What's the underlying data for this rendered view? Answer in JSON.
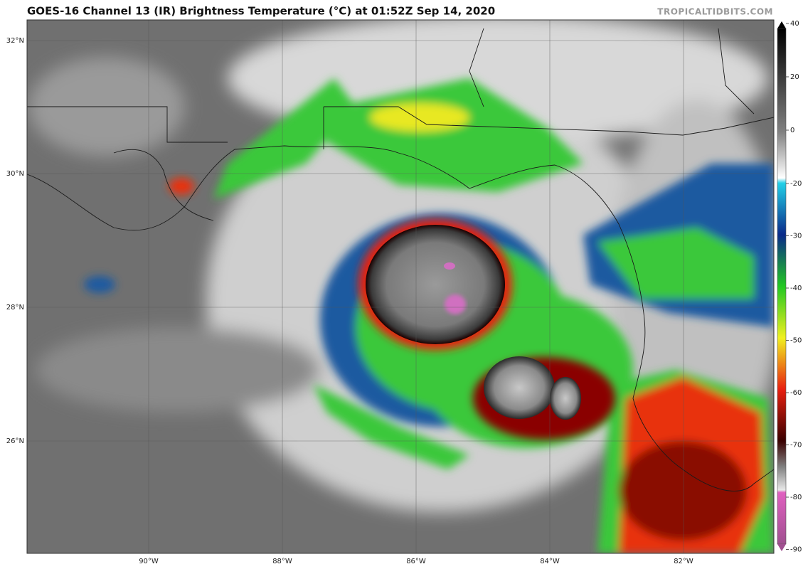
{
  "header": {
    "title": "GOES-16 Channel 13 (IR) Brightness Temperature (°C) at 01:52Z Sep 14, 2020",
    "credit": "TROPICALTIDBITS.COM"
  },
  "map": {
    "lat_labels": [
      "32°N",
      "30°N",
      "28°N",
      "26°N"
    ],
    "lon_labels": [
      "90°W",
      "88°W",
      "86°W",
      "84°W",
      "82°W"
    ]
  },
  "colorbar": {
    "ticks": [
      40,
      20,
      0,
      -20,
      -30,
      -40,
      -50,
      -60,
      -70,
      -80,
      -90
    ]
  }
}
